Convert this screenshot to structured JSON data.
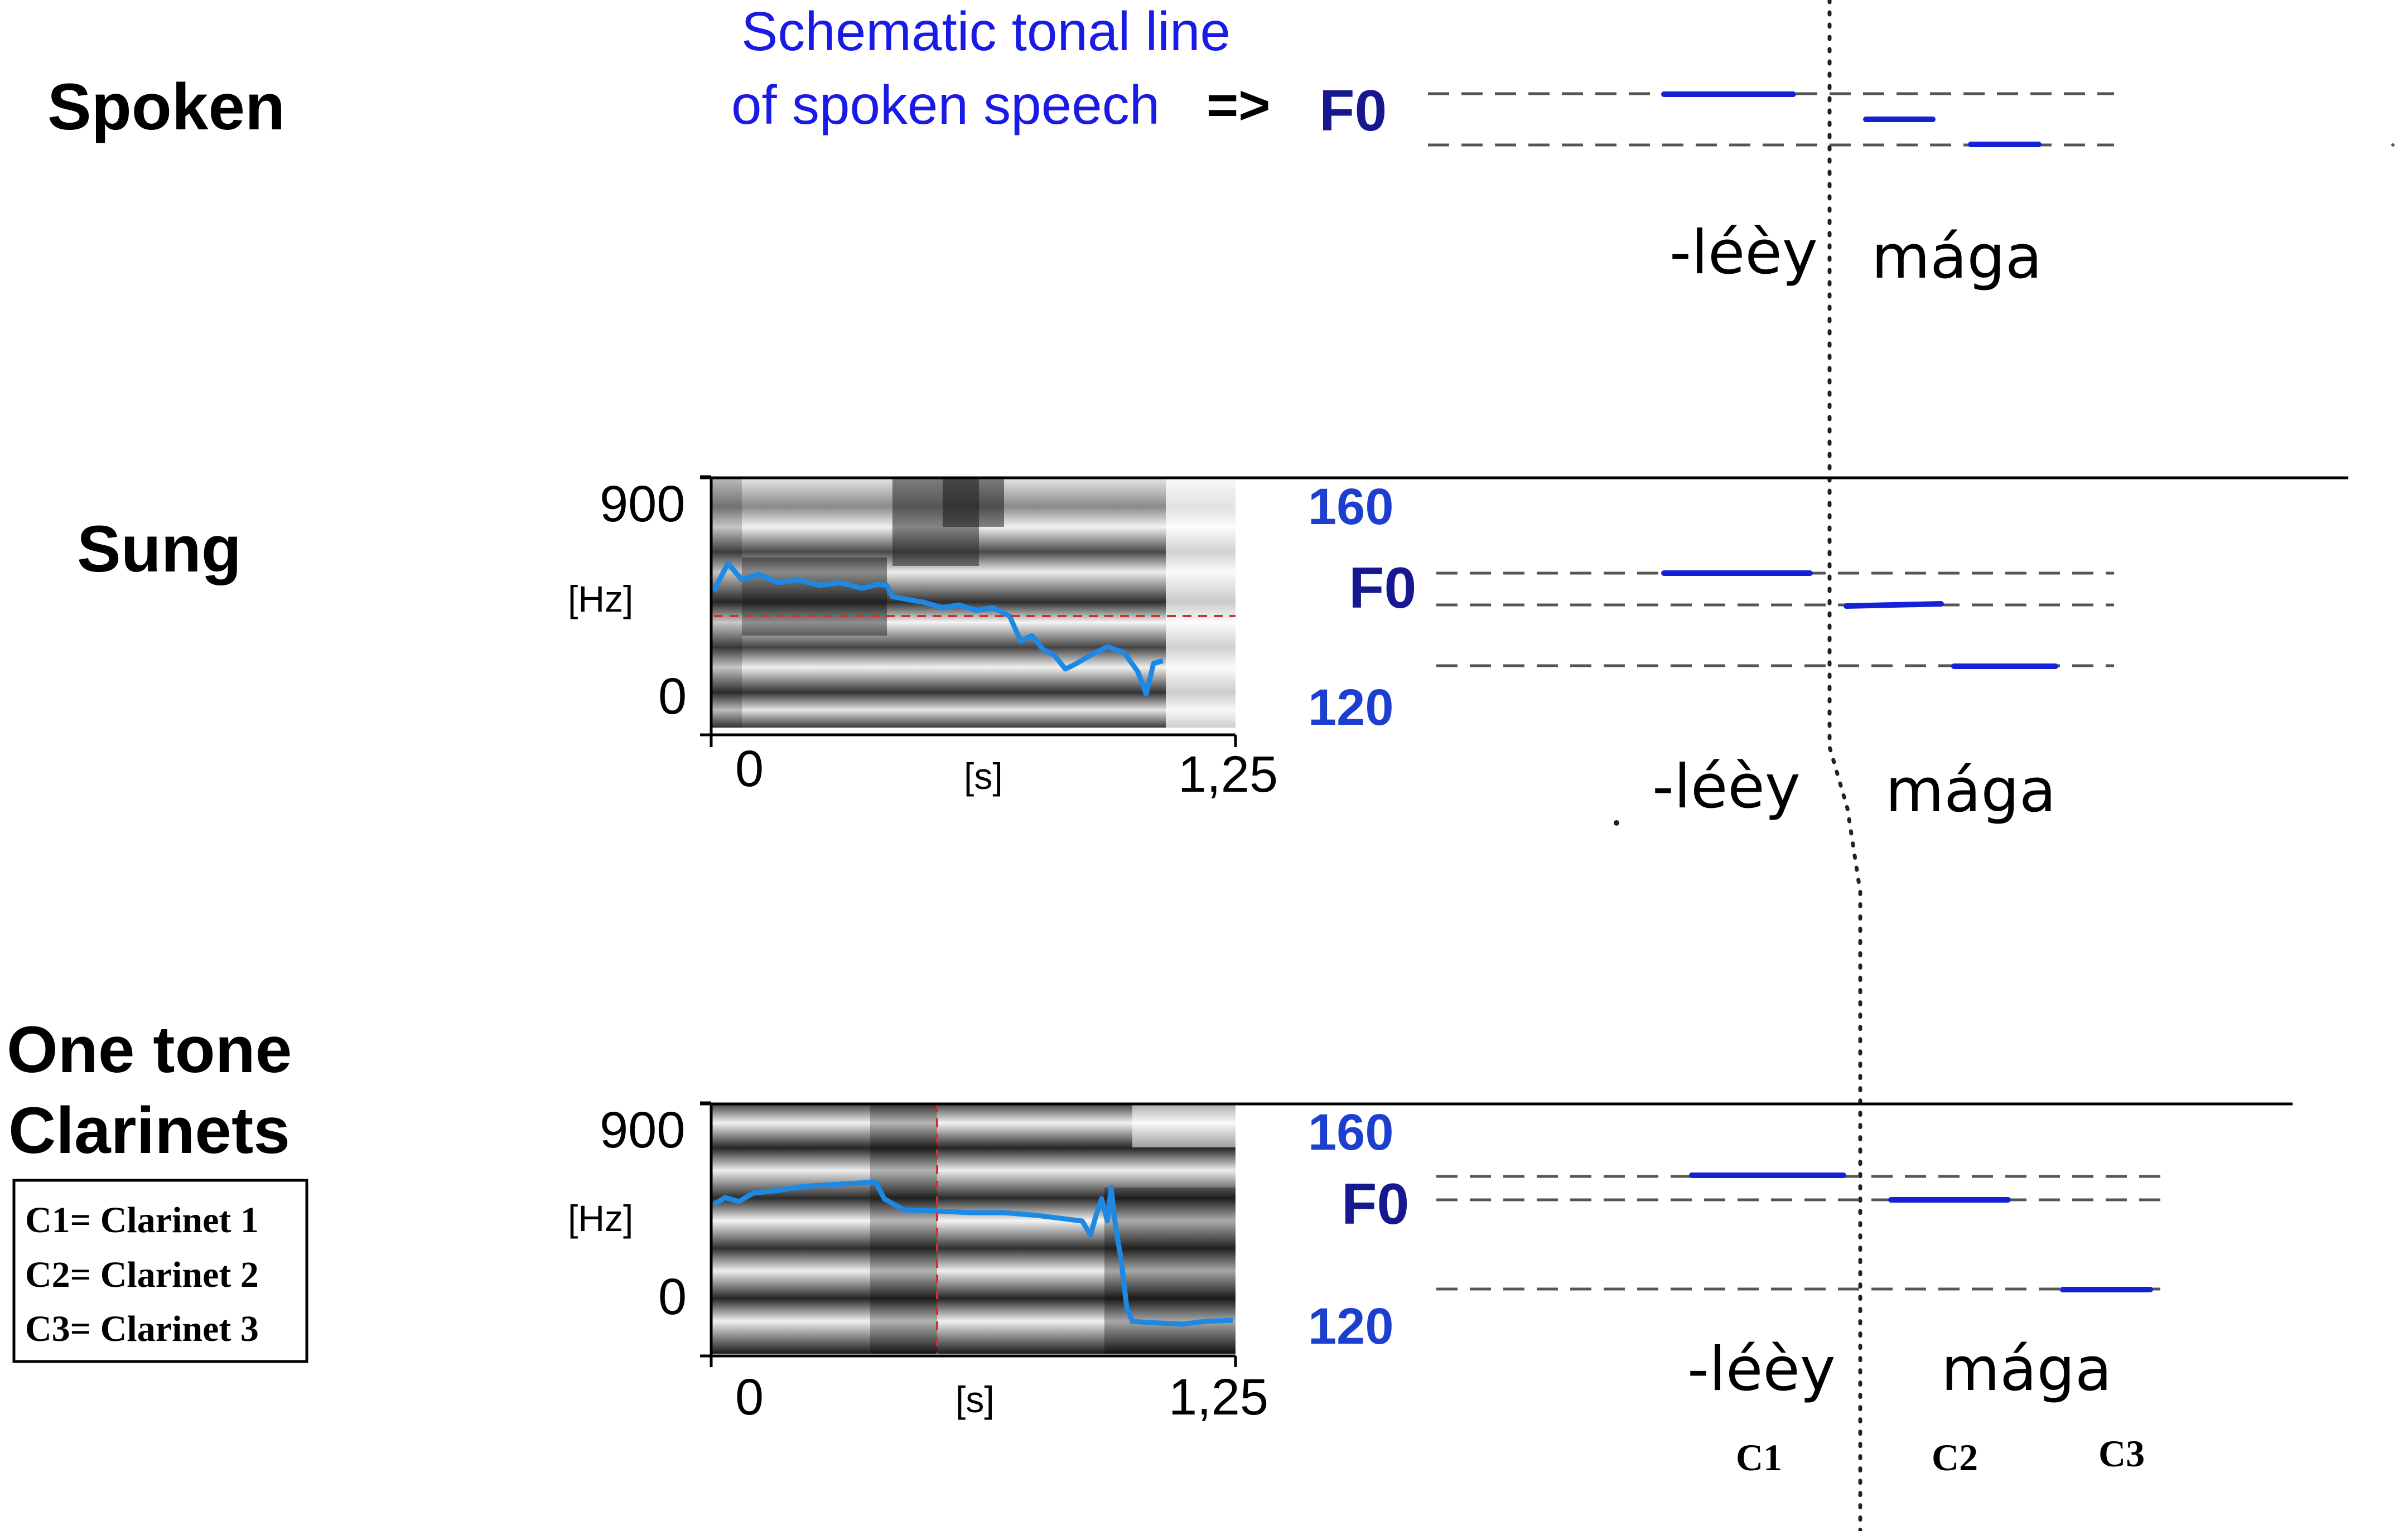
{
  "rows": {
    "spoken": {
      "title": "Spoken",
      "caption_line1": "Schematic tonal line",
      "caption_line2": "of spoken speech",
      "arrow": "=>",
      "f0": "F0",
      "syllable_1": "-léèy",
      "syllable_2": "mága"
    },
    "sung": {
      "title": "Sung",
      "y_max": "900",
      "y_unit": "[Hz]",
      "y_min": "0",
      "x_min": "0",
      "x_unit": "[s]",
      "x_max": "1,25",
      "scale_top": "160",
      "f0": "F0",
      "scale_bottom": "120",
      "syllable_1": "-léèy",
      "syllable_2": "mága"
    },
    "clarinets": {
      "title_line1": "One tone",
      "title_line2": "Clarinets",
      "legend": [
        "C1= Clarinet 1",
        "C2= Clarinet 2",
        "C3= Clarinet 3"
      ],
      "y_max": "900",
      "y_unit": "[Hz]",
      "y_min": "0",
      "x_min": "0",
      "x_unit": "[s]",
      "x_max": "1,25",
      "scale_top": "160",
      "f0": "F0",
      "scale_bottom": "120",
      "syllable_1": "-léèy",
      "syllable_2": "mága",
      "clarinet_1": "C1",
      "clarinet_2": "C2",
      "clarinet_3": "C3"
    }
  },
  "colors": {
    "caption_blue": "#1a1ae6",
    "f0_label": "#17178f",
    "scale_label": "#1d3fcf",
    "tone_segment": "#1422d6",
    "pitch_track": "#1e88e5",
    "reference_line": "#d32f2f"
  }
}
